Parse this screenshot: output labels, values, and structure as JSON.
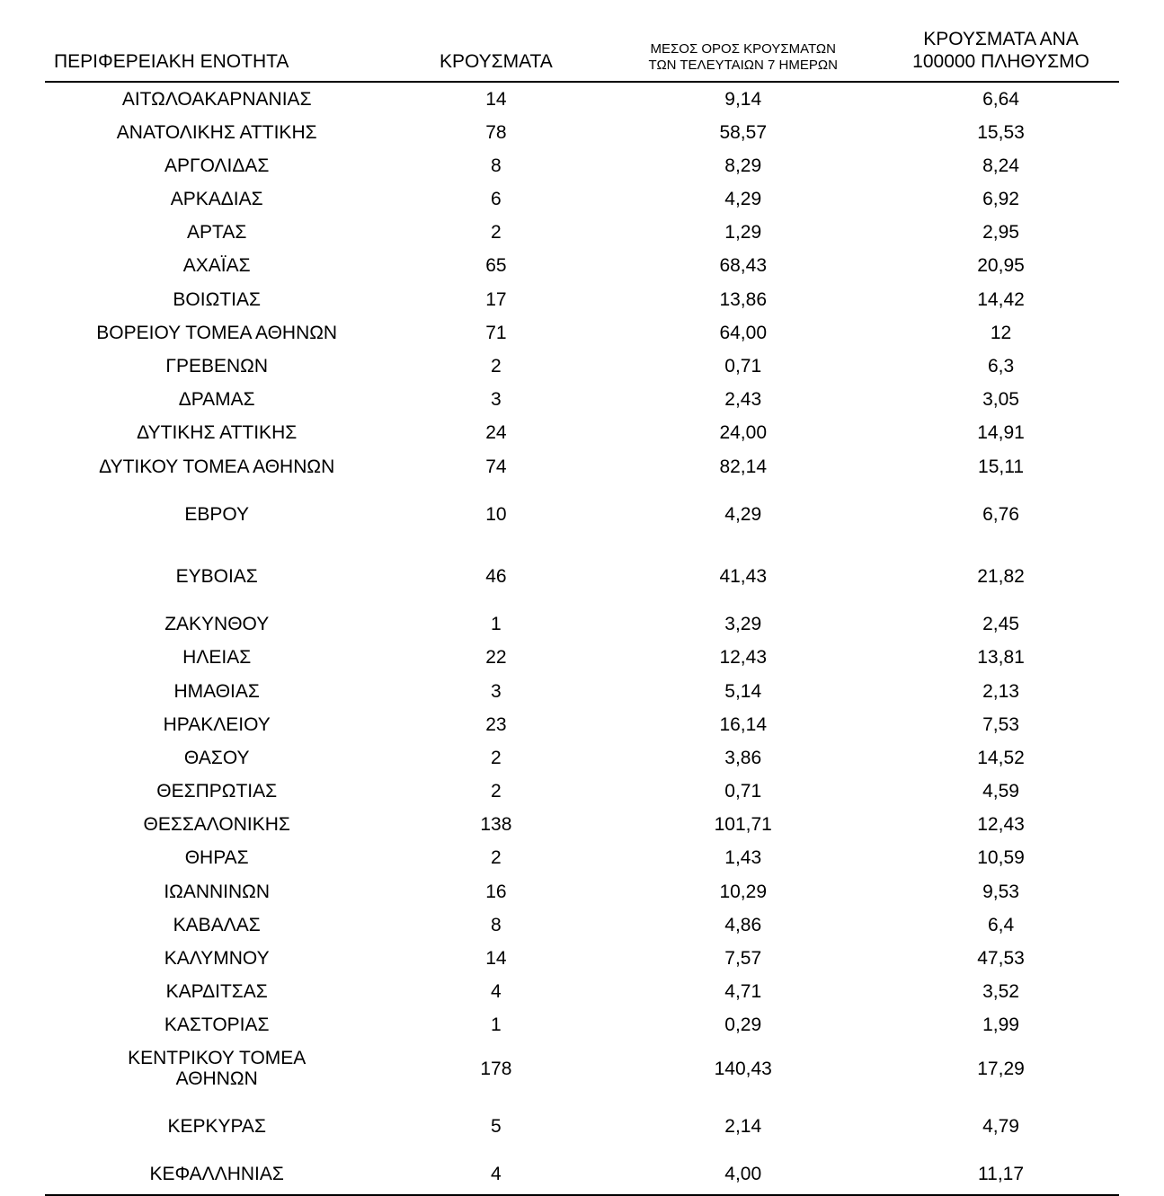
{
  "table": {
    "type": "table",
    "background_color": "#ffffff",
    "text_color": "#000000",
    "border_color": "#000000",
    "header_fontsize_pt": 16,
    "header_small_fontsize_pt": 11,
    "body_fontsize_pt": 16,
    "columns": [
      {
        "key": "region",
        "label": "ΠΕΡΙΦΕΡΕΙΑΚΗ ΕΝΟΤΗΤΑ",
        "align": "left",
        "width_pct": 32
      },
      {
        "key": "cases",
        "label": "ΚΡΟΥΣΜΑΤΑ",
        "align": "center",
        "width_pct": 20
      },
      {
        "key": "avg7",
        "label": "ΜΕΣΟΣ ΟΡΟΣ ΚΡΟΥΣΜΑΤΩΝ\nΤΩΝ ΤΕΛΕΥΤΑΙΩΝ 7 ΗΜΕΡΩΝ",
        "align": "center",
        "width_pct": 26,
        "small": true
      },
      {
        "key": "per100k",
        "label": "ΚΡΟΥΣΜΑΤΑ ΑΝΑ\n100000 ΠΛΗΘΥΣΜΟ",
        "align": "center",
        "width_pct": 22
      }
    ],
    "rows": [
      {
        "region": "ΑΙΤΩΛΟΑΚΑΡΝΑΝΙΑΣ",
        "cases": "14",
        "avg7": "9,14",
        "per100k": "6,64"
      },
      {
        "region": "ΑΝΑΤΟΛΙΚΗΣ ΑΤΤΙΚΗΣ",
        "cases": "78",
        "avg7": "58,57",
        "per100k": "15,53"
      },
      {
        "region": "ΑΡΓΟΛΙΔΑΣ",
        "cases": "8",
        "avg7": "8,29",
        "per100k": "8,24"
      },
      {
        "region": "ΑΡΚΑΔΙΑΣ",
        "cases": "6",
        "avg7": "4,29",
        "per100k": "6,92"
      },
      {
        "region": "ΑΡΤΑΣ",
        "cases": "2",
        "avg7": "1,29",
        "per100k": "2,95"
      },
      {
        "region": "ΑΧΑΪΑΣ",
        "cases": "65",
        "avg7": "68,43",
        "per100k": "20,95"
      },
      {
        "region": "ΒΟΙΩΤΙΑΣ",
        "cases": "17",
        "avg7": "13,86",
        "per100k": "14,42"
      },
      {
        "region": "ΒΟΡΕΙΟΥ ΤΟΜΕΑ ΑΘΗΝΩΝ",
        "cases": "71",
        "avg7": "64,00",
        "per100k": "12"
      },
      {
        "region": "ΓΡΕΒΕΝΩΝ",
        "cases": "2",
        "avg7": "0,71",
        "per100k": "6,3"
      },
      {
        "region": "ΔΡΑΜΑΣ",
        "cases": "3",
        "avg7": "2,43",
        "per100k": "3,05"
      },
      {
        "region": "ΔΥΤΙΚΗΣ ΑΤΤΙΚΗΣ",
        "cases": "24",
        "avg7": "24,00",
        "per100k": "14,91"
      },
      {
        "region": "ΔΥΤΙΚΟΥ ΤΟΜΕΑ ΑΘΗΝΩΝ",
        "cases": "74",
        "avg7": "82,14",
        "per100k": "15,11"
      },
      {
        "region": "ΕΒΡΟΥ",
        "cases": "10",
        "avg7": "4,29",
        "per100k": "6,76",
        "gap": true
      },
      {
        "region": "ΕΥΒΟΙΑΣ",
        "cases": "46",
        "avg7": "41,43",
        "per100k": "21,82",
        "gap": true
      },
      {
        "region": "ΖΑΚΥΝΘΟΥ",
        "cases": "1",
        "avg7": "3,29",
        "per100k": "2,45"
      },
      {
        "region": "ΗΛΕΙΑΣ",
        "cases": "22",
        "avg7": "12,43",
        "per100k": "13,81"
      },
      {
        "region": "ΗΜΑΘΙΑΣ",
        "cases": "3",
        "avg7": "5,14",
        "per100k": "2,13"
      },
      {
        "region": "ΗΡΑΚΛΕΙΟΥ",
        "cases": "23",
        "avg7": "16,14",
        "per100k": "7,53"
      },
      {
        "region": "ΘΑΣΟΥ",
        "cases": "2",
        "avg7": "3,86",
        "per100k": "14,52"
      },
      {
        "region": "ΘΕΣΠΡΩΤΙΑΣ",
        "cases": "2",
        "avg7": "0,71",
        "per100k": "4,59"
      },
      {
        "region": "ΘΕΣΣΑΛΟΝΙΚΗΣ",
        "cases": "138",
        "avg7": "101,71",
        "per100k": "12,43"
      },
      {
        "region": "ΘΗΡΑΣ",
        "cases": "2",
        "avg7": "1,43",
        "per100k": "10,59"
      },
      {
        "region": "ΙΩΑΝΝΙΝΩΝ",
        "cases": "16",
        "avg7": "10,29",
        "per100k": "9,53"
      },
      {
        "region": "ΚΑΒΑΛΑΣ",
        "cases": "8",
        "avg7": "4,86",
        "per100k": "6,4"
      },
      {
        "region": "ΚΑΛΥΜΝΟΥ",
        "cases": "14",
        "avg7": "7,57",
        "per100k": "47,53"
      },
      {
        "region": "ΚΑΡΔΙΤΣΑΣ",
        "cases": "4",
        "avg7": "4,71",
        "per100k": "3,52"
      },
      {
        "region": "ΚΑΣΤΟΡΙΑΣ",
        "cases": "1",
        "avg7": "0,29",
        "per100k": "1,99"
      },
      {
        "region": "ΚΕΝΤΡΙΚΟΥ ΤΟΜΕΑ\nΑΘΗΝΩΝ",
        "cases": "178",
        "avg7": "140,43",
        "per100k": "17,29",
        "multiline": true
      },
      {
        "region": "ΚΕΡΚΥΡΑΣ",
        "cases": "5",
        "avg7": "2,14",
        "per100k": "4,79",
        "gap": true
      },
      {
        "region": "ΚΕΦΑΛΛΗΝΙΑΣ",
        "cases": "4",
        "avg7": "4,00",
        "per100k": "11,17"
      }
    ]
  }
}
